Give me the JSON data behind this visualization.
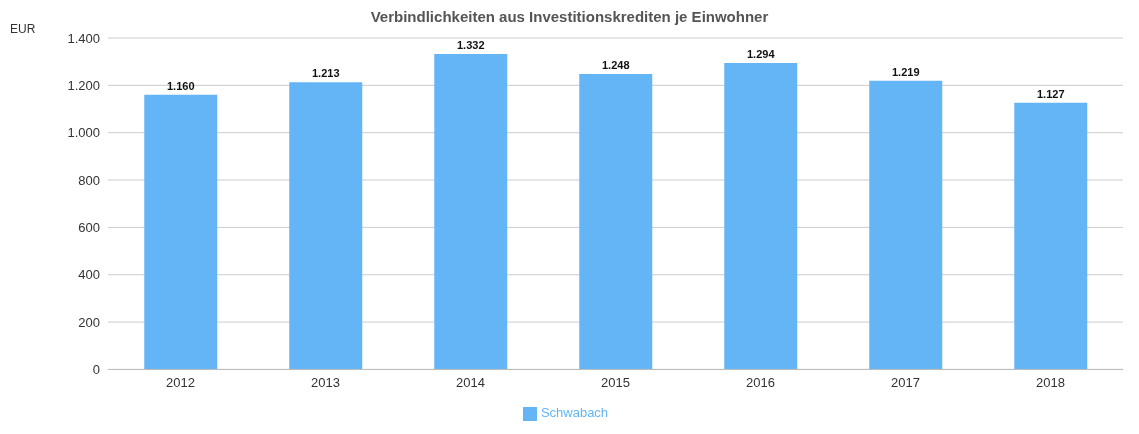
{
  "chart_data": {
    "type": "bar",
    "title": "Verbindlichkeiten aus Investitionskrediten je Einwohner",
    "ylabel": "EUR",
    "categories": [
      "2012",
      "2013",
      "2014",
      "2015",
      "2016",
      "2017",
      "2018"
    ],
    "series": [
      {
        "name": "Schwabach",
        "color": "#64b5f6",
        "values": [
          1160,
          1213,
          1332,
          1248,
          1294,
          1219,
          1127
        ],
        "value_labels": [
          "1.160",
          "1.213",
          "1.332",
          "1.248",
          "1.294",
          "1.219",
          "1.127"
        ]
      }
    ],
    "ylim": [
      0,
      1400
    ],
    "yticks": [
      0,
      200,
      400,
      600,
      800,
      {
        "value": 1000,
        "label": "1.000"
      },
      {
        "value": 1200,
        "label": "1.200"
      },
      {
        "value": 1400,
        "label": "1.400"
      }
    ],
    "grid": "y",
    "legend": "bottom"
  }
}
